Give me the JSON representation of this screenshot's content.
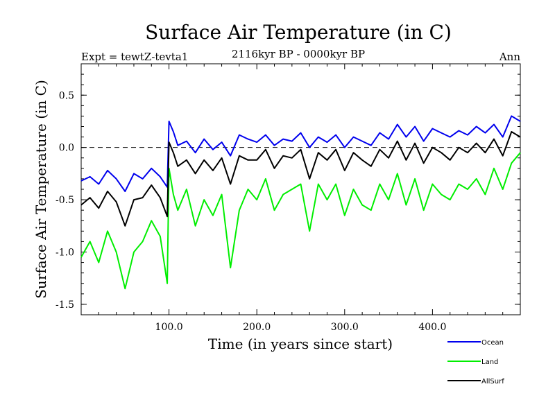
{
  "chart_data": {
    "type": "line",
    "title": "Surface Air Temperature (in C)",
    "subtitle_left": "Expt = tewtZ-tevta1",
    "subtitle_center": "2116kyr BP - 0000kyr BP",
    "subtitle_right": "Ann",
    "xlabel": "Time (in years since start)",
    "ylabel": "Surface Air Temperature (in C)",
    "xlim": [
      0,
      500
    ],
    "ylim": [
      -1.6,
      0.8
    ],
    "x_ticks": [
      {
        "value": 100,
        "label": "100.0"
      },
      {
        "value": 200,
        "label": "200.0"
      },
      {
        "value": 300,
        "label": "300.0"
      },
      {
        "value": 400,
        "label": "400.0"
      }
    ],
    "y_ticks": [
      {
        "value": 0.5,
        "label": "0.5"
      },
      {
        "value": 0.0,
        "label": "0.0"
      },
      {
        "value": -0.5,
        "label": "-0.5"
      },
      {
        "value": -1.0,
        "label": "-1.0"
      },
      {
        "value": -1.5,
        "label": "-1.5"
      }
    ],
    "reference_line": 0.0,
    "x": [
      0,
      10,
      20,
      30,
      40,
      50,
      60,
      70,
      80,
      90,
      98,
      100,
      105,
      110,
      120,
      130,
      140,
      150,
      160,
      170,
      180,
      190,
      200,
      210,
      220,
      230,
      240,
      250,
      260,
      270,
      280,
      290,
      300,
      310,
      320,
      330,
      340,
      350,
      360,
      370,
      380,
      390,
      400,
      410,
      420,
      430,
      440,
      450,
      460,
      470,
      480,
      490,
      500
    ],
    "series": [
      {
        "name": "Ocean",
        "color": "#0000ee",
        "values": [
          -0.32,
          -0.28,
          -0.35,
          -0.22,
          -0.3,
          -0.42,
          -0.25,
          -0.3,
          -0.2,
          -0.28,
          -0.38,
          0.25,
          0.15,
          0.02,
          0.06,
          -0.05,
          0.08,
          -0.02,
          0.05,
          -0.08,
          0.12,
          0.08,
          0.05,
          0.12,
          0.02,
          0.08,
          0.06,
          0.14,
          0.0,
          0.1,
          0.05,
          0.12,
          0.0,
          0.1,
          0.06,
          0.02,
          0.14,
          0.08,
          0.22,
          0.1,
          0.2,
          0.06,
          0.18,
          0.14,
          0.1,
          0.16,
          0.12,
          0.2,
          0.14,
          0.22,
          0.1,
          0.3,
          0.25
        ]
      },
      {
        "name": "Land",
        "color": "#00ee00",
        "values": [
          -1.05,
          -0.9,
          -1.1,
          -0.8,
          -1.0,
          -1.35,
          -1.0,
          -0.9,
          -0.7,
          -0.85,
          -1.3,
          -0.2,
          -0.45,
          -0.6,
          -0.4,
          -0.75,
          -0.5,
          -0.65,
          -0.45,
          -1.15,
          -0.6,
          -0.4,
          -0.5,
          -0.3,
          -0.6,
          -0.45,
          -0.4,
          -0.35,
          -0.8,
          -0.35,
          -0.5,
          -0.35,
          -0.65,
          -0.4,
          -0.55,
          -0.6,
          -0.35,
          -0.5,
          -0.25,
          -0.55,
          -0.3,
          -0.6,
          -0.35,
          -0.45,
          -0.5,
          -0.35,
          -0.4,
          -0.3,
          -0.45,
          -0.2,
          -0.4,
          -0.15,
          -0.05
        ]
      },
      {
        "name": "AllSurf",
        "color": "#000000",
        "values": [
          -0.55,
          -0.48,
          -0.58,
          -0.42,
          -0.52,
          -0.75,
          -0.5,
          -0.48,
          -0.36,
          -0.48,
          -0.66,
          0.05,
          -0.05,
          -0.18,
          -0.12,
          -0.25,
          -0.12,
          -0.22,
          -0.1,
          -0.35,
          -0.08,
          -0.12,
          -0.12,
          -0.02,
          -0.2,
          -0.08,
          -0.1,
          -0.02,
          -0.3,
          -0.05,
          -0.12,
          -0.02,
          -0.22,
          -0.05,
          -0.12,
          -0.18,
          -0.02,
          -0.1,
          0.06,
          -0.12,
          0.04,
          -0.15,
          0.0,
          -0.05,
          -0.12,
          0.0,
          -0.05,
          0.04,
          -0.05,
          0.08,
          -0.08,
          0.15,
          0.1
        ]
      }
    ],
    "legend": {
      "placement": "bottom-right",
      "entries": [
        "Ocean",
        "Land",
        "AllSurf"
      ]
    }
  }
}
